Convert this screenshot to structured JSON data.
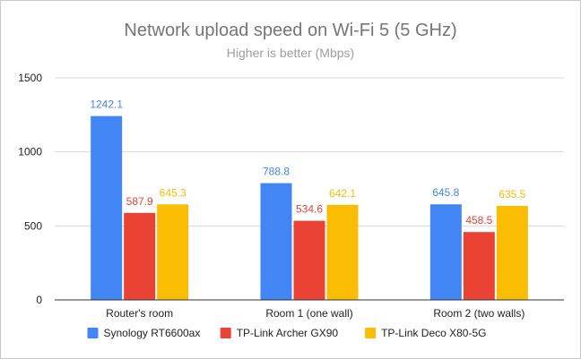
{
  "chart_data": {
    "type": "bar",
    "title": "Network upload speed on Wi-Fi 5 (5 GHz)",
    "subtitle": "Higher is better (Mbps)",
    "xlabel": "",
    "ylabel": "",
    "ylim": [
      0,
      1500
    ],
    "yticks": [
      0,
      500,
      1000,
      1500
    ],
    "grid": true,
    "legend": "bottom",
    "categories": [
      "Router's room",
      "Room 1 (one wall)",
      "Room 2 (two walls)"
    ],
    "series": [
      {
        "name": "Synology RT6600ax",
        "color": "#4285f4",
        "values": [
          1242.1,
          788.8,
          645.8
        ]
      },
      {
        "name": "TP-Link Archer GX90",
        "color": "#ea4335",
        "values": [
          587.9,
          534.6,
          458.5
        ]
      },
      {
        "name": "TP-Link Deco X80-5G",
        "color": "#fbbc04",
        "values": [
          645.3,
          642.1,
          635.5
        ]
      }
    ],
    "data_labels": true
  }
}
